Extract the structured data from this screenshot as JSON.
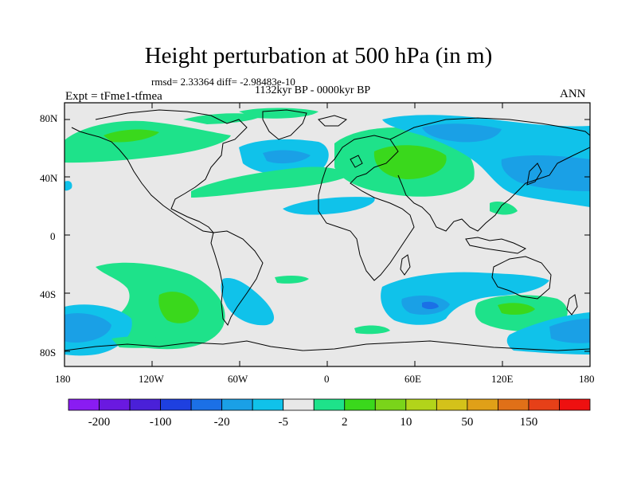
{
  "title": "Height perturbation at 500 hPa (in m)",
  "stats": "rmsd= 2.33364 diff= -2.98483e-10",
  "subtitle": "1132kyr BP - 0000kyr BP",
  "experiment": "Expt = tFme1-tfmea",
  "season": "ANN",
  "lat_labels": [
    "80N",
    "40N",
    "0",
    "40S",
    "80S"
  ],
  "lon_labels": [
    "180",
    "120W",
    "60W",
    "0",
    "60E",
    "120E",
    "180"
  ],
  "colorbar": {
    "colors": [
      "#8a1cf2",
      "#6a19e0",
      "#4a20d8",
      "#1e40e0",
      "#1b70e6",
      "#1aa0e6",
      "#10c2ea",
      "#e8e8e8",
      "#1ee28a",
      "#3ad81c",
      "#7ad41a",
      "#b2d41a",
      "#d4c21a",
      "#e0a018",
      "#e07018",
      "#e64018",
      "#ee1010"
    ],
    "labels": [
      "-200",
      "-100",
      "-20",
      "-5",
      "2",
      "10",
      "50",
      "150"
    ]
  },
  "palette": {
    "background": "#e8e8e8",
    "light_blue": "#10c2ea",
    "mid_blue": "#1aa0e6",
    "dark_blue": "#1b70e6",
    "light_green": "#1ee28a",
    "green": "#3ad81c"
  }
}
